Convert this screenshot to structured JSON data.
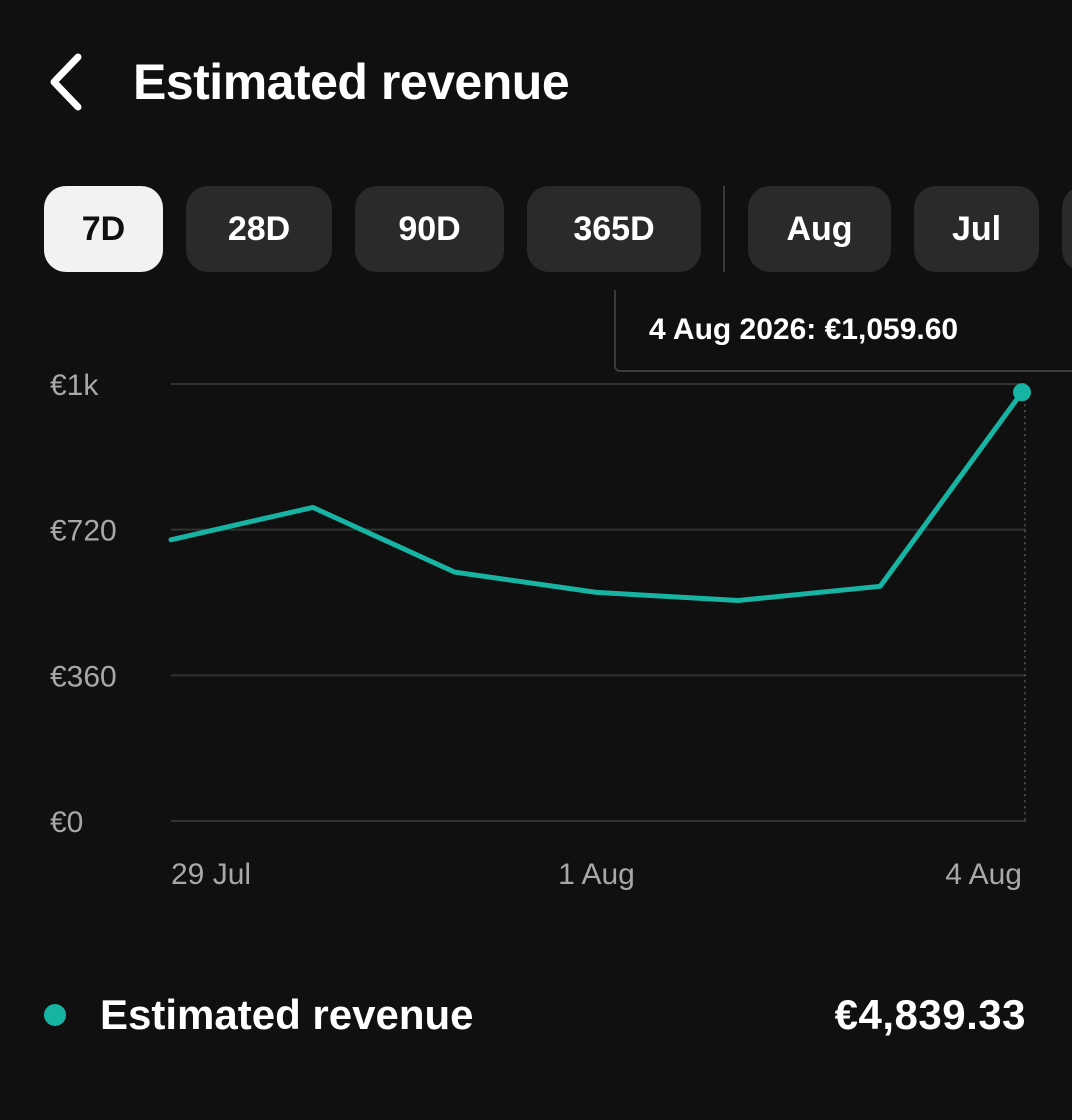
{
  "header": {
    "title": "Estimated revenue"
  },
  "tabs": [
    {
      "label": "7D",
      "active": true
    },
    {
      "label": "28D",
      "active": false
    },
    {
      "label": "90D",
      "active": false
    },
    {
      "label": "365D",
      "active": false
    },
    {
      "label": "Aug",
      "active": false
    },
    {
      "label": "Jul",
      "active": false
    }
  ],
  "tooltip": {
    "text": "4 Aug 2026: €1,059.60"
  },
  "colors": {
    "accent": "#17b3a3",
    "grid": "#333333",
    "axis_text": "#a8a8a8",
    "background": "#101010"
  },
  "legend": {
    "label": "Estimated revenue",
    "value": "€4,839.33"
  },
  "chart_data": {
    "type": "line",
    "x": [
      "29 Jul",
      "30 Jul",
      "31 Jul",
      "1 Aug",
      "2 Aug",
      "3 Aug",
      "4 Aug"
    ],
    "x_tick_labels": [
      "29 Jul",
      "1 Aug",
      "4 Aug"
    ],
    "y_tick_labels": [
      "€0",
      "€360",
      "€720",
      "€1k"
    ],
    "y_ticks": [
      0,
      360,
      720,
      1080
    ],
    "ylim": [
      0,
      1080
    ],
    "series": [
      {
        "values": [
          695,
          775,
          615,
          565,
          545,
          580,
          1059.6
        ]
      }
    ],
    "highlighted_index": 6,
    "grid": true
  }
}
